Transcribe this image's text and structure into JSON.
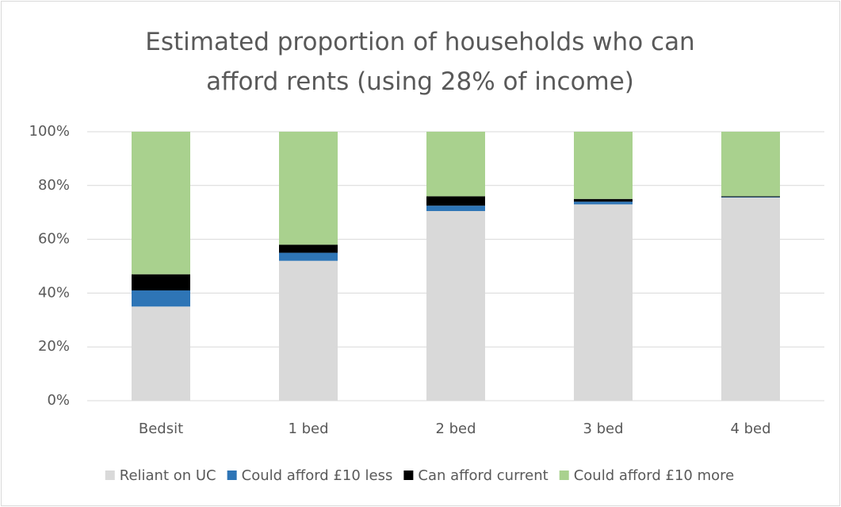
{
  "chart_data": {
    "type": "stacked_bar",
    "title": "Estimated proportion of households who can afford rents (using 28% of income)",
    "categories": [
      "Bedsit",
      "1 bed",
      "2 bed",
      "3 bed",
      "4 bed"
    ],
    "series": [
      {
        "name": "Reliant on UC",
        "color": "#d9d9d9",
        "values": [
          35,
          52,
          70.5,
          73,
          75.5
        ]
      },
      {
        "name": "Could afford £10 less",
        "color": "#2e75b6",
        "values": [
          6,
          3,
          2,
          1,
          0.2
        ]
      },
      {
        "name": "Can afford current",
        "color": "#000000",
        "values": [
          6,
          3,
          3.5,
          1,
          0.3
        ]
      },
      {
        "name": "Could afford £10 more",
        "color": "#a9d18e",
        "values": [
          53,
          42,
          24,
          25,
          24
        ]
      }
    ],
    "ylim": [
      0,
      100
    ],
    "yticks": [
      {
        "value": 0,
        "label": "0%"
      },
      {
        "value": 20,
        "label": "20%"
      },
      {
        "value": 40,
        "label": "40%"
      },
      {
        "value": 60,
        "label": "60%"
      },
      {
        "value": 80,
        "label": "80%"
      },
      {
        "value": 100,
        "label": "100%"
      }
    ],
    "grid": true,
    "legend": "bottom"
  }
}
